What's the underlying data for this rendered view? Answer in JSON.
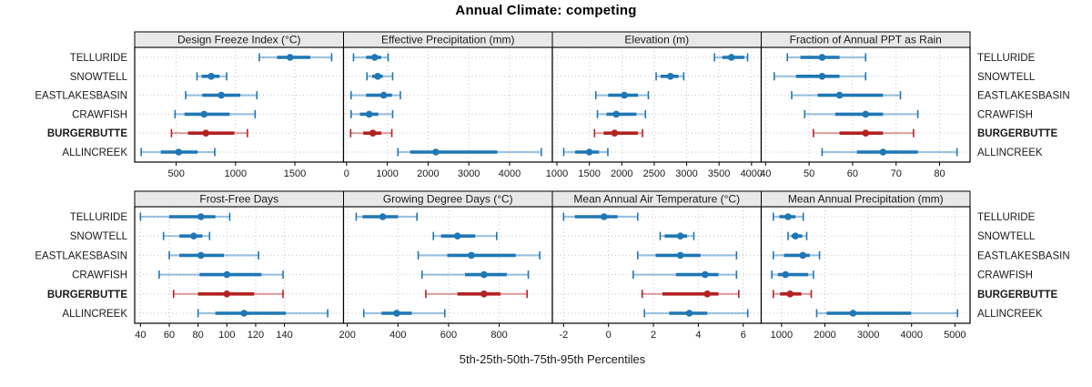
{
  "title": "Annual Climate: competing",
  "caption": "5th-25th-50th-75th-95th Percentiles",
  "sites": [
    "TELLURIDE",
    "SNOWTELL",
    "EASTLAKESBASIN",
    "CRAWFISH",
    "BURGERBUTTE",
    "ALLINCREEK"
  ],
  "highlight_site": "BURGERBUTTE",
  "percentile_labels": [
    "5th",
    "25th",
    "50th",
    "75th",
    "95th"
  ],
  "colors": {
    "series": "#1f77b4",
    "highlight": "#b22222",
    "strip_bg": "#e8e8e8",
    "panel_bg": "#ffffff",
    "grid": "#c6c6c6",
    "border": "#000000",
    "text": "#1a1a1a"
  },
  "chart_data": {
    "type": "dotplot-intervals",
    "note": "Each entry is [5th, 25th, 50th, 75th, 95th] percentile",
    "legend_position": "none",
    "grid": "dotted",
    "panels": [
      {
        "title": "Design Freeze Index (°C)",
        "row": 0,
        "col": 0,
        "xlim": [
          150,
          1910
        ],
        "ticks": [
          500,
          1000,
          1500
        ],
        "values": {
          "TELLURIDE": [
            1200,
            1350,
            1460,
            1630,
            1810
          ],
          "SNOWTELL": [
            675,
            715,
            795,
            865,
            925
          ],
          "EASTLAKESBASIN": [
            580,
            720,
            880,
            1040,
            1180
          ],
          "CRAWFISH": [
            490,
            570,
            735,
            950,
            1165
          ],
          "BURGERBUTTE": [
            460,
            600,
            750,
            990,
            1100
          ],
          "ALLINCREEK": [
            205,
            370,
            520,
            680,
            825
          ]
        }
      },
      {
        "title": "Effective Precipitation (mm)",
        "row": 0,
        "col": 1,
        "xlim": [
          -75,
          5050
        ],
        "ticks": [
          0,
          1000,
          2000,
          3000,
          4000
        ],
        "values": {
          "TELLURIDE": [
            170,
            480,
            690,
            850,
            1020
          ],
          "SNOWTELL": [
            500,
            630,
            765,
            890,
            1130
          ],
          "EASTLAKESBASIN": [
            110,
            480,
            910,
            1110,
            1320
          ],
          "CRAWFISH": [
            110,
            330,
            555,
            780,
            1130
          ],
          "BURGERBUTTE": [
            100,
            410,
            645,
            855,
            1110
          ],
          "ALLINCREEK": [
            1260,
            1560,
            2190,
            3700,
            4780
          ]
        }
      },
      {
        "title": "Elevation (m)",
        "row": 0,
        "col": 2,
        "xlim": [
          930,
          4150
        ],
        "ticks": [
          1000,
          1500,
          2000,
          2500,
          3000,
          3500,
          4000
        ],
        "values": {
          "TELLURIDE": [
            3430,
            3550,
            3690,
            3890,
            3940
          ],
          "SNOWTELL": [
            2530,
            2600,
            2750,
            2875,
            2955
          ],
          "EASTLAKESBASIN": [
            1600,
            1790,
            2040,
            2250,
            2410
          ],
          "CRAWFISH": [
            1625,
            1765,
            1915,
            2225,
            2365
          ],
          "BURGERBUTTE": [
            1580,
            1720,
            1890,
            2250,
            2320
          ],
          "ALLINCREEK": [
            1105,
            1280,
            1500,
            1650,
            1785
          ]
        }
      },
      {
        "title": "Fraction of Annual PPT as Rain",
        "row": 0,
        "col": 3,
        "xlim": [
          39,
          87
        ],
        "ticks": [
          40,
          50,
          60,
          70,
          80
        ],
        "values": {
          "TELLURIDE": [
            45,
            48,
            53,
            57,
            63
          ],
          "SNOWTELL": [
            42,
            47,
            53,
            57,
            63
          ],
          "EASTLAKESBASIN": [
            46,
            52,
            57,
            67,
            71
          ],
          "CRAWFISH": [
            49,
            56,
            63,
            67,
            75
          ],
          "BURGERBUTTE": [
            51,
            57,
            63,
            67,
            74
          ],
          "ALLINCREEK": [
            53,
            61,
            67,
            75,
            84
          ]
        }
      },
      {
        "title": "Frost-Free Days",
        "row": 1,
        "col": 0,
        "xlim": [
          36,
          181
        ],
        "ticks": [
          40,
          60,
          80,
          100,
          120,
          140
        ],
        "values": {
          "TELLURIDE": [
            40,
            60,
            82,
            92,
            102
          ],
          "SNOWTELL": [
            56,
            67,
            77,
            83,
            88
          ],
          "EASTLAKESBASIN": [
            60,
            67,
            82,
            98,
            122
          ],
          "CRAWFISH": [
            53,
            81,
            100,
            124,
            139
          ],
          "BURGERBUTTE": [
            63,
            80,
            100,
            119,
            139
          ],
          "ALLINCREEK": [
            80,
            92,
            112,
            141,
            170
          ]
        }
      },
      {
        "title": "Growing Degree Days (°C)",
        "row": 1,
        "col": 1,
        "xlim": [
          185,
          1010
        ],
        "ticks": [
          200,
          400,
          600,
          800
        ],
        "values": {
          "TELLURIDE": [
            235,
            260,
            340,
            400,
            475
          ],
          "SNOWTELL": [
            540,
            570,
            635,
            705,
            790
          ],
          "EASTLAKESBASIN": [
            480,
            595,
            690,
            865,
            960
          ],
          "CRAWFISH": [
            495,
            665,
            740,
            830,
            915
          ],
          "BURGERBUTTE": [
            510,
            635,
            740,
            805,
            910
          ],
          "ALLINCREEK": [
            265,
            335,
            395,
            455,
            585
          ]
        }
      },
      {
        "title": "Mean Annual Air Temperature (°C)",
        "row": 1,
        "col": 2,
        "xlim": [
          -2.5,
          6.8
        ],
        "ticks": [
          -2,
          0,
          2,
          4,
          6
        ],
        "values": {
          "TELLURIDE": [
            -2.0,
            -1.5,
            -0.2,
            0.4,
            1.3
          ],
          "SNOWTELL": [
            2.3,
            2.5,
            3.2,
            3.5,
            3.8
          ],
          "EASTLAKESBASIN": [
            1.3,
            2.1,
            3.2,
            4.1,
            5.7
          ],
          "CRAWFISH": [
            1.1,
            3.0,
            4.3,
            4.9,
            5.7
          ],
          "BURGERBUTTE": [
            1.5,
            2.4,
            4.4,
            4.9,
            5.8
          ],
          "ALLINCREEK": [
            1.6,
            2.7,
            3.6,
            4.4,
            6.2
          ]
        }
      },
      {
        "title": "Mean Annual Precipitation (mm)",
        "row": 1,
        "col": 3,
        "xlim": [
          530,
          5350
        ],
        "ticks": [
          1000,
          2000,
          3000,
          4000,
          5000
        ],
        "values": {
          "TELLURIDE": [
            810,
            950,
            1150,
            1320,
            1500
          ],
          "SNOWTELL": [
            1150,
            1230,
            1320,
            1475,
            1580
          ],
          "EASTLAKESBASIN": [
            810,
            1055,
            1490,
            1650,
            1875
          ],
          "CRAWFISH": [
            775,
            915,
            1090,
            1615,
            1735
          ],
          "BURGERBUTTE": [
            810,
            965,
            1195,
            1455,
            1685
          ],
          "ALLINCREEK": [
            1810,
            2040,
            2650,
            3990,
            5060
          ]
        }
      }
    ]
  }
}
